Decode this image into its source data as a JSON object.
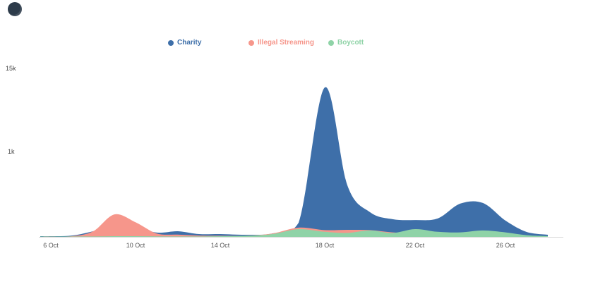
{
  "icons": {
    "logo": "dark-circle-logo"
  },
  "chart_data": {
    "type": "area",
    "title": "",
    "xlabel": "",
    "ylabel": "",
    "grid": false,
    "legend_position": "top",
    "ylim": [
      0,
      15000
    ],
    "yticks": {
      "top": "15k",
      "mid": "1k"
    },
    "xticks": [
      "6 Oct",
      "10 Oct",
      "14 Oct",
      "18 Oct",
      "22 Oct",
      "26 Oct"
    ],
    "x": [
      "5 Oct",
      "6 Oct",
      "7 Oct",
      "8 Oct",
      "9 Oct",
      "10 Oct",
      "11 Oct",
      "12 Oct",
      "13 Oct",
      "14 Oct",
      "15 Oct",
      "16 Oct",
      "17 Oct",
      "18 Oct",
      "19 Oct",
      "20 Oct",
      "21 Oct",
      "22 Oct",
      "23 Oct",
      "24 Oct",
      "25 Oct",
      "26 Oct",
      "27 Oct",
      "28 Oct"
    ],
    "series": [
      {
        "name": "Charity",
        "color": "#3e6fa9",
        "values": [
          60,
          60,
          120,
          500,
          1000,
          880,
          380,
          500,
          250,
          250,
          190,
          310,
          1260,
          13300,
          4600,
          2200,
          1575,
          1500,
          1640,
          2960,
          3020,
          1450,
          440,
          190
        ]
      },
      {
        "name": "Illegal Streaming",
        "color": "#f6968b",
        "values": [
          30,
          40,
          60,
          500,
          2000,
          1300,
          300,
          200,
          120,
          100,
          100,
          300,
          820,
          600,
          630,
          600,
          400,
          300,
          250,
          300,
          300,
          250,
          120,
          50
        ]
      },
      {
        "name": "Boycott",
        "color": "#8fd3a7",
        "values": [
          20,
          20,
          30,
          40,
          60,
          60,
          50,
          40,
          40,
          60,
          100,
          250,
          690,
          450,
          350,
          570,
          350,
          690,
          450,
          400,
          570,
          400,
          150,
          60
        ]
      }
    ]
  }
}
